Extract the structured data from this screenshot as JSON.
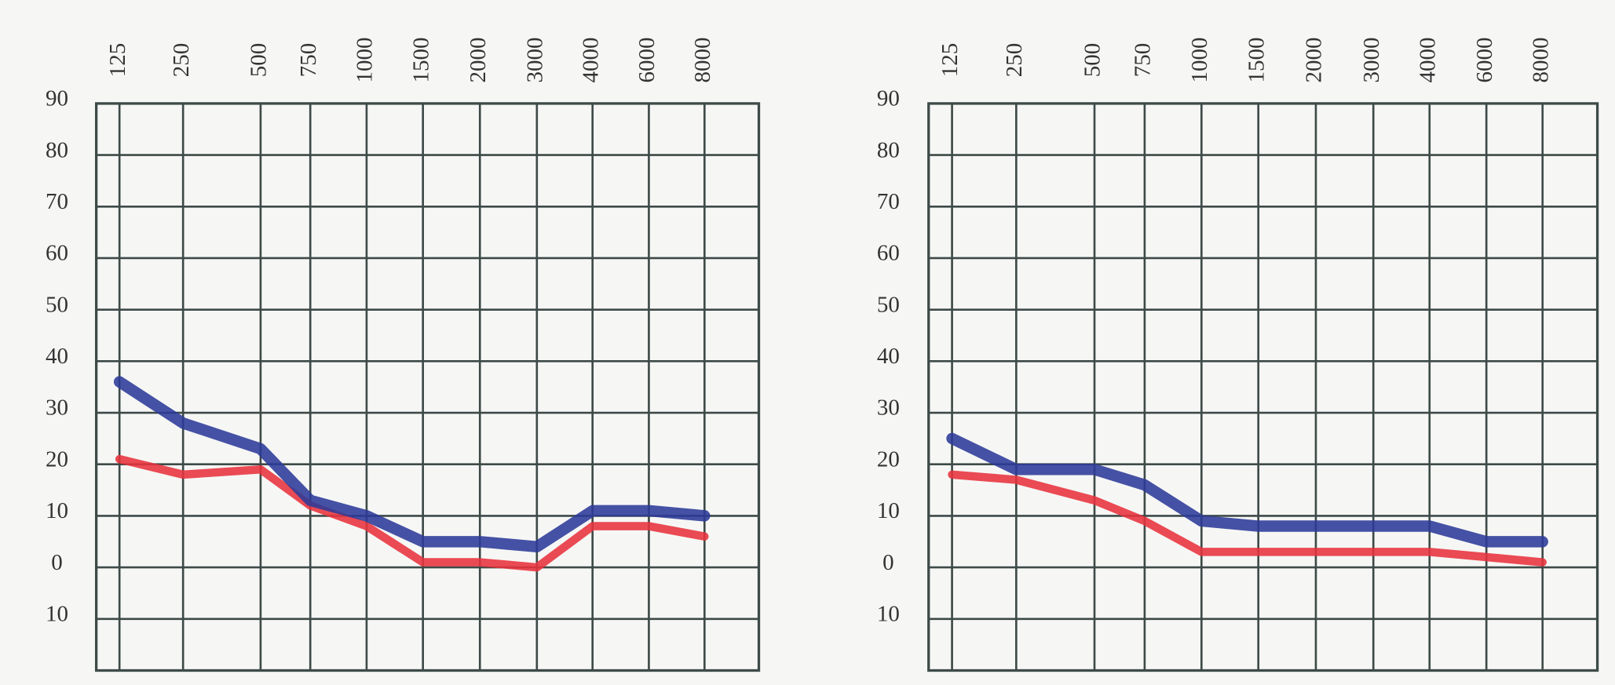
{
  "chart_data": [
    {
      "type": "line",
      "categories": [
        "125",
        "250",
        "500",
        "750",
        "1000",
        "1500",
        "2000",
        "3000",
        "4000",
        "6000",
        "8000"
      ],
      "ylim": [
        -20,
        90
      ],
      "yticks": [
        {
          "value": -10,
          "label": "10"
        },
        0,
        10,
        20,
        30,
        40,
        50,
        60,
        70,
        80,
        90
      ],
      "series": [
        {
          "color": "#e8323c",
          "values": [
            21,
            18,
            19,
            12,
            8,
            1,
            1,
            0,
            8,
            8,
            6
          ]
        },
        {
          "color": "#2c3a98",
          "values": [
            36,
            28,
            23,
            13,
            10,
            5,
            5,
            4,
            11,
            11,
            10
          ]
        }
      ]
    },
    {
      "type": "line",
      "categories": [
        "125",
        "250",
        "500",
        "750",
        "1000",
        "1500",
        "2000",
        "3000",
        "4000",
        "6000",
        "8000"
      ],
      "ylim": [
        -20,
        90
      ],
      "yticks": [
        {
          "value": -10,
          "label": "10"
        },
        0,
        10,
        20,
        30,
        40,
        50,
        60,
        70,
        80,
        90
      ],
      "series": [
        {
          "color": "#e8323c",
          "values": [
            18,
            17,
            13,
            9,
            3,
            3,
            3,
            3,
            3,
            2,
            1
          ]
        },
        {
          "color": "#2c3a98",
          "values": [
            25,
            19,
            19,
            16,
            9,
            8,
            8,
            8,
            8,
            5,
            5
          ]
        }
      ]
    }
  ]
}
